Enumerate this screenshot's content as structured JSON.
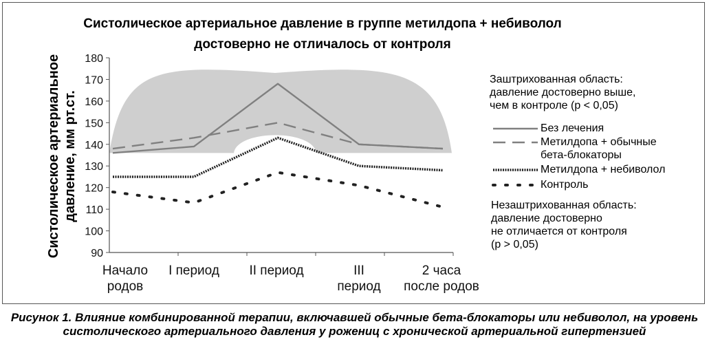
{
  "chart_data": {
    "type": "line",
    "title_line1": "Систолическое артериальное давление в группе метилдопа + небиволол",
    "title_line2": "достоверно не отличалось от контроля",
    "ylabel": "Систолическое артериальное давление, мм рт.ст.",
    "xlabel": "",
    "categories": [
      "Начало родов",
      "I период",
      "II период",
      "III период",
      "2 часа после родов"
    ],
    "ylim": [
      90,
      180
    ],
    "yticks": [
      90,
      100,
      110,
      120,
      130,
      140,
      150,
      160,
      170,
      180
    ],
    "shaded_region_threshold": 136,
    "series": [
      {
        "name": "Без лечения",
        "style": "solid",
        "color": "#808080",
        "values": [
          136,
          139,
          168,
          140,
          138
        ]
      },
      {
        "name": "Метилдопа + обычные бета-блокаторы",
        "style": "dashed",
        "color": "#808080",
        "values": [
          138,
          143,
          150,
          140,
          138
        ]
      },
      {
        "name": "Метилдопа + небиволол",
        "style": "dense-dotted",
        "color": "#222222",
        "values": [
          125,
          125,
          143,
          130,
          128
        ]
      },
      {
        "name": "Контроль",
        "style": "sparse-dotted",
        "color": "#222222",
        "values": [
          118,
          113,
          127,
          121,
          111
        ]
      }
    ],
    "legend": {
      "shaded_note": "Заштрихованная область:\nдавление достоверно выше,\nчем в контроле (р < 0,05)",
      "unshaded_note": "Незаштрихованная область:\nдавление достоверно\nне отличается от контроля\n(р > 0,05)"
    },
    "grid": false,
    "legend_position": "right",
    "colors": {
      "shade": "#cfcfcf",
      "axis": "#555555"
    }
  },
  "caption": "Рисунок 1. Влияние комбинированной терапии, включавшей обычные бета-блокаторы или небиволол, на уровень систолического артериального давления у рожениц с хронической артериальной гипертензией"
}
